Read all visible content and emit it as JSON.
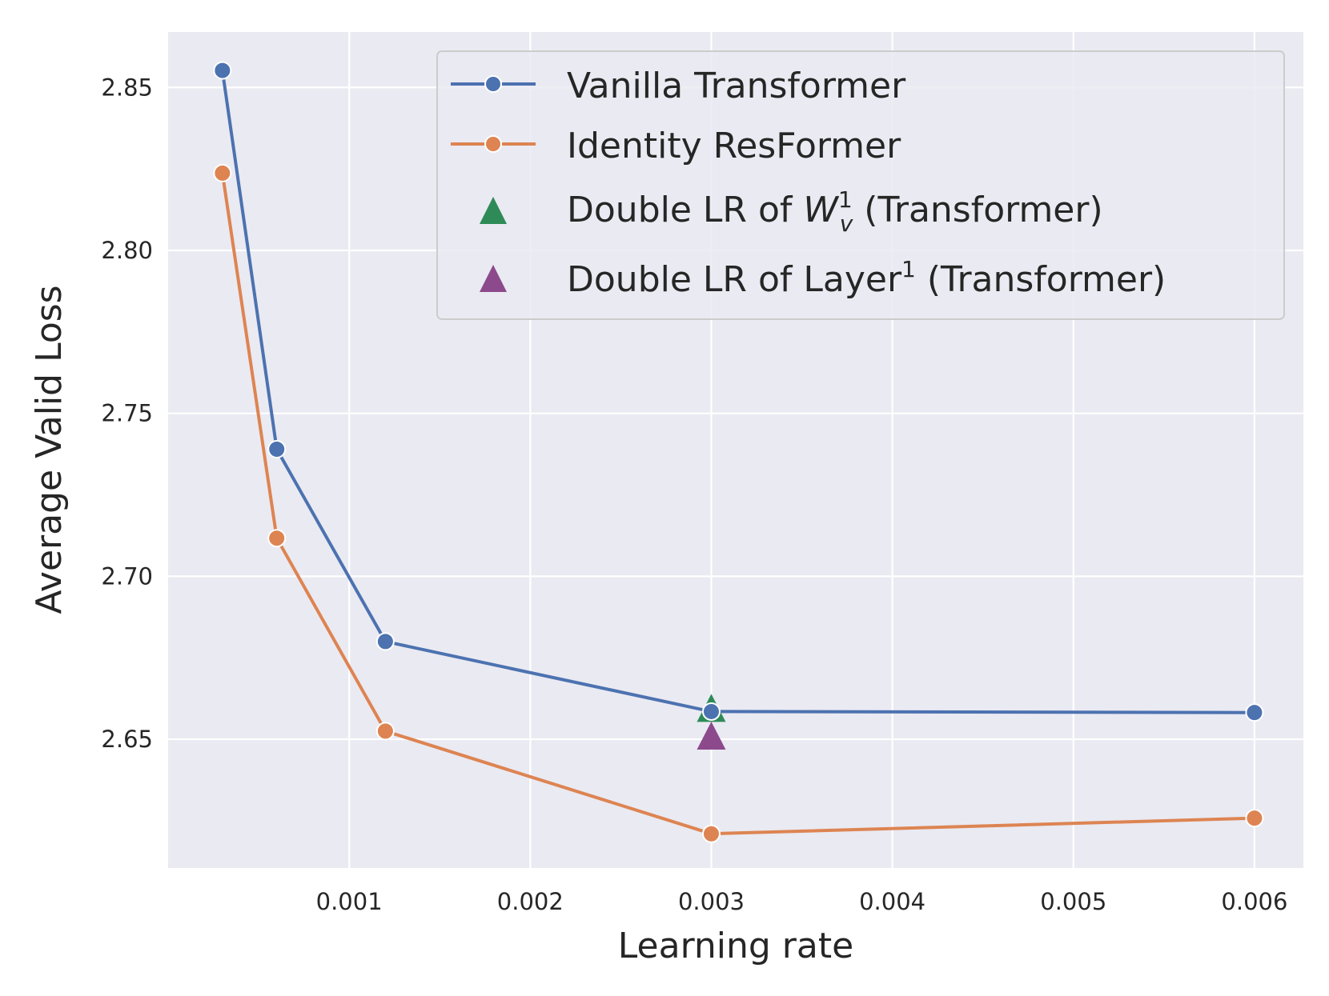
{
  "chart_data": {
    "type": "line",
    "xlabel": "Learning rate",
    "ylabel": "Average Valid Loss",
    "xlim": [
      0.0,
      0.00627
    ],
    "ylim": [
      2.6105,
      2.867
    ],
    "xticks": [
      0.001,
      0.002,
      0.003,
      0.004,
      0.005,
      0.006
    ],
    "xtick_labels": [
      "0.001",
      "0.002",
      "0.003",
      "0.004",
      "0.005",
      "0.006"
    ],
    "yticks": [
      2.65,
      2.7,
      2.75,
      2.8,
      2.85
    ],
    "ytick_labels": [
      "2.65",
      "2.70",
      "2.75",
      "2.80",
      "2.85"
    ],
    "grid": true,
    "legend_position": "top-right",
    "series": [
      {
        "name": "Vanilla Transformer",
        "color": "#4c72b0",
        "marker": "circle",
        "x": [
          0.0003,
          0.0006,
          0.0012,
          0.003,
          0.006
        ],
        "y": [
          2.8552,
          2.739,
          2.68,
          2.6585,
          2.6582
        ]
      },
      {
        "name": "Identity ResFormer",
        "color": "#dd8452",
        "marker": "circle",
        "x": [
          0.0003,
          0.0006,
          0.0012,
          0.003,
          0.006
        ],
        "y": [
          2.8237,
          2.7117,
          2.6525,
          2.621,
          2.6258
        ]
      }
    ],
    "markers": [
      {
        "name_prefix": "Double LR of ",
        "name_main": "W",
        "name_sup": "1",
        "name_sub": "v",
        "name_suffix": " (Transformer)",
        "color": "#2e8b57",
        "marker": "triangle",
        "x": 0.003,
        "y": 2.659
      },
      {
        "name_prefix": "Double LR of Layer",
        "name_sup": "1",
        "name_suffix": " (Transformer)",
        "color": "#8c4a8c",
        "marker": "triangle",
        "x": 0.003,
        "y": 2.6505
      }
    ]
  }
}
